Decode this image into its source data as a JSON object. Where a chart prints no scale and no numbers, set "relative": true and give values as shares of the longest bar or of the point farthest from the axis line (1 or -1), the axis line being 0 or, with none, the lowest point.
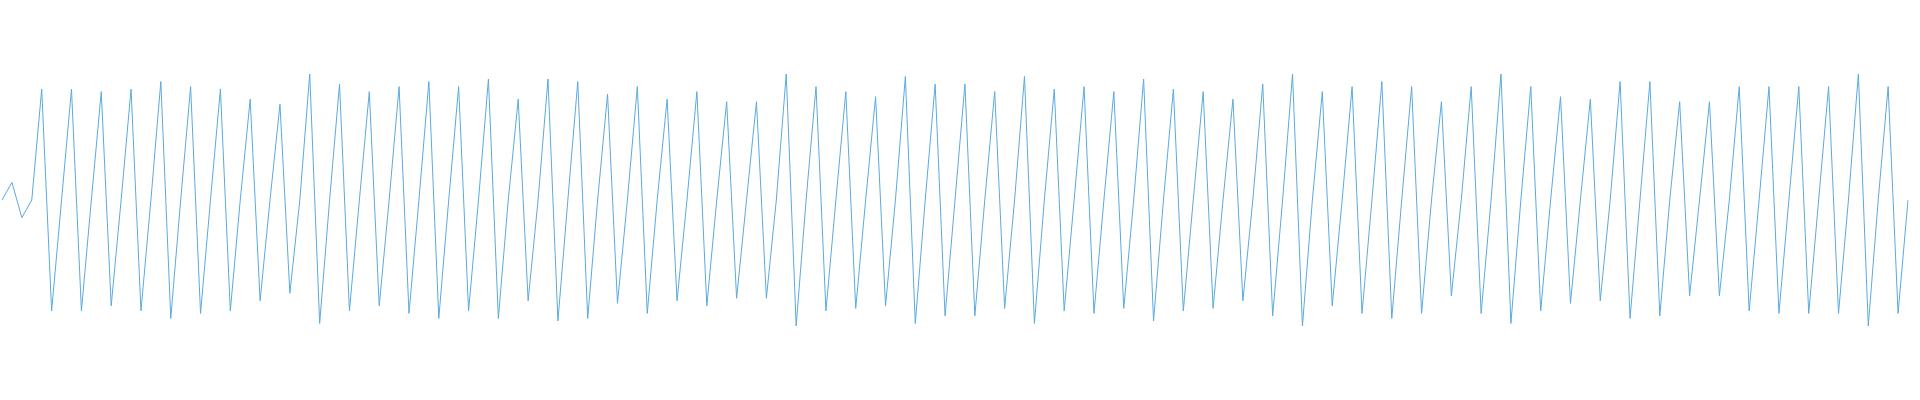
{
  "chart_data": {
    "type": "line",
    "relative": true,
    "categories": [
      null,
      null,
      null,
      null,
      null,
      null,
      null,
      null,
      null,
      null,
      null,
      null,
      null,
      null,
      null,
      null,
      null,
      null,
      null,
      null,
      null,
      null,
      null,
      null,
      null,
      null,
      null,
      null,
      null,
      null,
      null,
      null,
      null,
      null,
      null,
      null,
      null,
      null,
      null,
      null,
      null,
      null,
      null,
      null,
      null,
      null,
      null,
      null,
      null,
      null,
      null,
      null,
      null,
      null,
      null,
      null,
      null,
      null,
      null,
      null,
      null,
      null,
      null,
      null,
      null,
      null,
      null,
      null,
      null,
      null,
      null,
      null,
      null,
      null,
      null,
      null,
      null,
      null,
      null,
      null,
      null,
      null,
      null,
      null,
      null,
      null,
      null,
      null,
      null,
      null,
      null,
      null,
      null,
      null,
      null,
      null,
      null,
      null,
      null,
      null,
      null,
      null,
      null,
      null,
      null,
      null,
      null,
      null,
      null,
      null,
      null,
      null,
      null,
      null,
      null,
      null,
      null,
      null,
      null,
      null,
      null,
      null,
      null,
      null,
      null,
      null,
      null,
      null,
      null,
      null,
      null,
      null,
      null,
      null,
      null,
      null,
      null,
      null,
      null,
      null,
      null,
      null,
      null,
      null,
      null,
      null,
      null,
      null,
      null,
      null,
      null,
      null,
      null,
      null,
      null,
      null,
      null,
      null,
      null,
      null,
      null,
      null,
      null,
      null,
      null,
      null,
      null,
      null,
      null,
      null,
      null,
      null,
      null,
      null,
      null,
      null,
      null,
      null,
      null,
      null,
      null,
      null,
      null,
      null,
      null,
      null,
      null,
      null,
      null,
      null,
      null,
      null,
      null
    ],
    "series": [
      {
        "color": "#5aaae0",
        "values": [
          0.5,
          0.57,
          0.43,
          0.5,
          0.94,
          0.06,
          0.5,
          0.94,
          0.06,
          0.5,
          0.93,
          0.08,
          0.5,
          0.94,
          0.06,
          0.5,
          0.97,
          0.03,
          0.5,
          0.95,
          0.05,
          0.5,
          0.94,
          0.06,
          0.5,
          0.9,
          0.1,
          0.5,
          0.88,
          0.13,
          0.5,
          1.0,
          0.01,
          0.5,
          0.96,
          0.06,
          0.5,
          0.93,
          0.08,
          0.5,
          0.95,
          0.05,
          0.5,
          0.97,
          0.03,
          0.5,
          0.95,
          0.06,
          0.5,
          0.98,
          0.03,
          0.5,
          0.9,
          0.1,
          0.5,
          0.98,
          0.02,
          0.5,
          0.97,
          0.03,
          0.5,
          0.92,
          0.09,
          0.5,
          0.95,
          0.05,
          0.5,
          0.9,
          0.1,
          0.5,
          0.93,
          0.08,
          0.5,
          0.89,
          0.11,
          0.5,
          0.89,
          0.11,
          0.5,
          1.0,
          0.0,
          0.5,
          0.95,
          0.06,
          0.5,
          0.93,
          0.07,
          0.5,
          0.91,
          0.08,
          0.5,
          0.99,
          0.01,
          0.5,
          0.96,
          0.04,
          0.5,
          0.96,
          0.04,
          0.5,
          0.93,
          0.07,
          0.5,
          0.99,
          0.01,
          0.5,
          0.94,
          0.06,
          0.5,
          0.95,
          0.05,
          0.5,
          0.93,
          0.07,
          0.5,
          0.98,
          0.02,
          0.5,
          0.94,
          0.06,
          0.5,
          0.93,
          0.07,
          0.5,
          0.9,
          0.1,
          0.5,
          0.96,
          0.04,
          0.5,
          1.0,
          0.0,
          0.5,
          0.93,
          0.08,
          0.5,
          0.95,
          0.05,
          0.5,
          0.97,
          0.03,
          0.5,
          0.95,
          0.05,
          0.5,
          0.89,
          0.12,
          0.5,
          0.95,
          0.05,
          0.5,
          1.0,
          0.01,
          0.5,
          0.95,
          0.06,
          0.5,
          0.91,
          0.09,
          0.5,
          0.9,
          0.1,
          0.5,
          0.97,
          0.03,
          0.5,
          0.97,
          0.04,
          0.5,
          0.89,
          0.12,
          0.5,
          0.89,
          0.12,
          0.5,
          0.95,
          0.06,
          0.5,
          0.95,
          0.05,
          0.5,
          0.95,
          0.05,
          0.5,
          0.95,
          0.05,
          0.5,
          1.0,
          0.0,
          0.5,
          0.95,
          0.05,
          0.5
        ]
      }
    ]
  }
}
